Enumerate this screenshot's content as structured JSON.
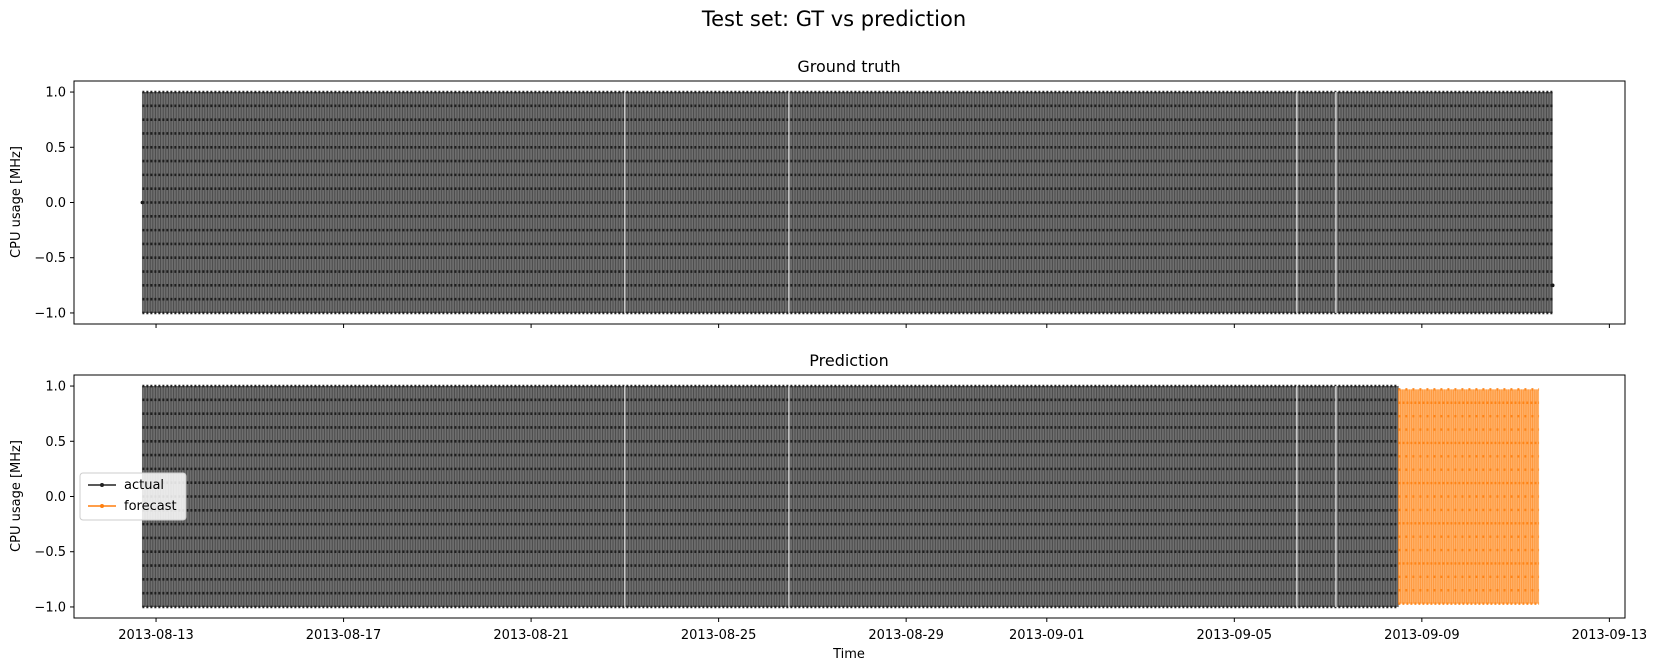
{
  "figure": {
    "suptitle": "Test set: GT vs prediction",
    "xlabel": "Time"
  },
  "chart_data": [
    {
      "type": "line",
      "title": "Ground truth",
      "ylabel": "CPU usage [MHz]",
      "xlim": [
        "2013-08-11T06:00",
        "2013-09-13T08:00"
      ],
      "ylim": [
        -1.1,
        1.1
      ],
      "yticks": [
        -1.0,
        -0.5,
        0.0,
        0.5,
        1.0
      ],
      "ytick_labels": [
        "−1.0",
        "−0.5",
        "0.0",
        "0.5",
        "1.0"
      ],
      "xticks": [
        "2013-08-13",
        "2013-08-17",
        "2013-08-21",
        "2013-08-25",
        "2013-08-29",
        "2013-09-01",
        "2013-09-05",
        "2013-09-09",
        "2013-09-13"
      ],
      "xtick_labels_shown": false,
      "grid": false,
      "series": [
        {
          "name": "actual",
          "x_range": [
            "2013-08-12T17:00",
            "2013-09-11T19:00"
          ],
          "y_range": [
            -1.0,
            1.0
          ],
          "pattern": "dense oscillation on discrete levels",
          "start_value": 0.0,
          "end_value": -0.75,
          "color": "#222222"
        }
      ]
    },
    {
      "type": "line",
      "title": "Prediction",
      "ylabel": "CPU usage [MHz]",
      "xlim": [
        "2013-08-11T06:00",
        "2013-09-13T08:00"
      ],
      "ylim": [
        -1.1,
        1.1
      ],
      "yticks": [
        -1.0,
        -0.5,
        0.0,
        0.5,
        1.0
      ],
      "ytick_labels": [
        "−1.0",
        "−0.5",
        "0.0",
        "0.5",
        "1.0"
      ],
      "xticks": [
        "2013-08-13",
        "2013-08-17",
        "2013-08-21",
        "2013-08-25",
        "2013-08-29",
        "2013-09-01",
        "2013-09-05",
        "2013-09-09",
        "2013-09-13"
      ],
      "xtick_labels": [
        "2013-08-13",
        "2013-08-17",
        "2013-08-21",
        "2013-08-25",
        "2013-08-29",
        "2013-09-01",
        "2013-09-05",
        "2013-09-09",
        "2013-09-13"
      ],
      "grid": false,
      "legend": {
        "placement": "center-left",
        "entries": [
          "actual",
          "forecast"
        ]
      },
      "series": [
        {
          "name": "actual",
          "x_range": [
            "2013-08-12T17:00",
            "2013-09-08T12:00"
          ],
          "y_range": [
            -1.0,
            1.0
          ],
          "pattern": "dense oscillation on discrete levels",
          "color": "#222222"
        },
        {
          "name": "forecast",
          "x_range": [
            "2013-09-08T12:00",
            "2013-09-11T12:00"
          ],
          "y_range": [
            -0.97,
            0.97
          ],
          "pattern": "dense oscillation on discrete levels",
          "color": "#ff7f0e"
        }
      ]
    }
  ]
}
